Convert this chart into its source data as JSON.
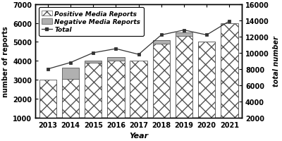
{
  "years": [
    2013,
    2014,
    2015,
    2016,
    2017,
    2018,
    2019,
    2020,
    2021
  ],
  "positive": [
    3000,
    3050,
    3900,
    4000,
    4000,
    4900,
    5300,
    5000,
    6000
  ],
  "negative": [
    2900,
    3650,
    4000,
    4200,
    3650,
    5100,
    5500,
    5000,
    5700
  ],
  "total": [
    8000,
    8800,
    10000,
    10500,
    9800,
    12200,
    12800,
    12200,
    13900
  ],
  "bar_width": 0.38,
  "ylim_left": [
    1000,
    7000
  ],
  "ylim_right": [
    2000,
    16000
  ],
  "yticks_left": [
    1000,
    2000,
    3000,
    4000,
    5000,
    6000,
    7000
  ],
  "yticks_right": [
    2000,
    4000,
    6000,
    8000,
    10000,
    12000,
    14000,
    16000
  ],
  "xlabel": "Year",
  "ylabel_left": "number of reports",
  "ylabel_right": "total number",
  "positive_hatch": "xx",
  "positive_facecolor": "#ffffff",
  "positive_edgecolor": "#555555",
  "negative_facecolor": "#b0b0b0",
  "negative_edgecolor": "#555555",
  "line_color": "#333333",
  "marker": "s",
  "marker_facecolor": "#333333",
  "background_color": "#ffffff",
  "legend_labels": [
    "Positive Media Reports",
    "Negative Media Reports",
    "Total"
  ],
  "fontsize": 7,
  "figsize": [
    4.0,
    2.01
  ],
  "dpi": 100
}
